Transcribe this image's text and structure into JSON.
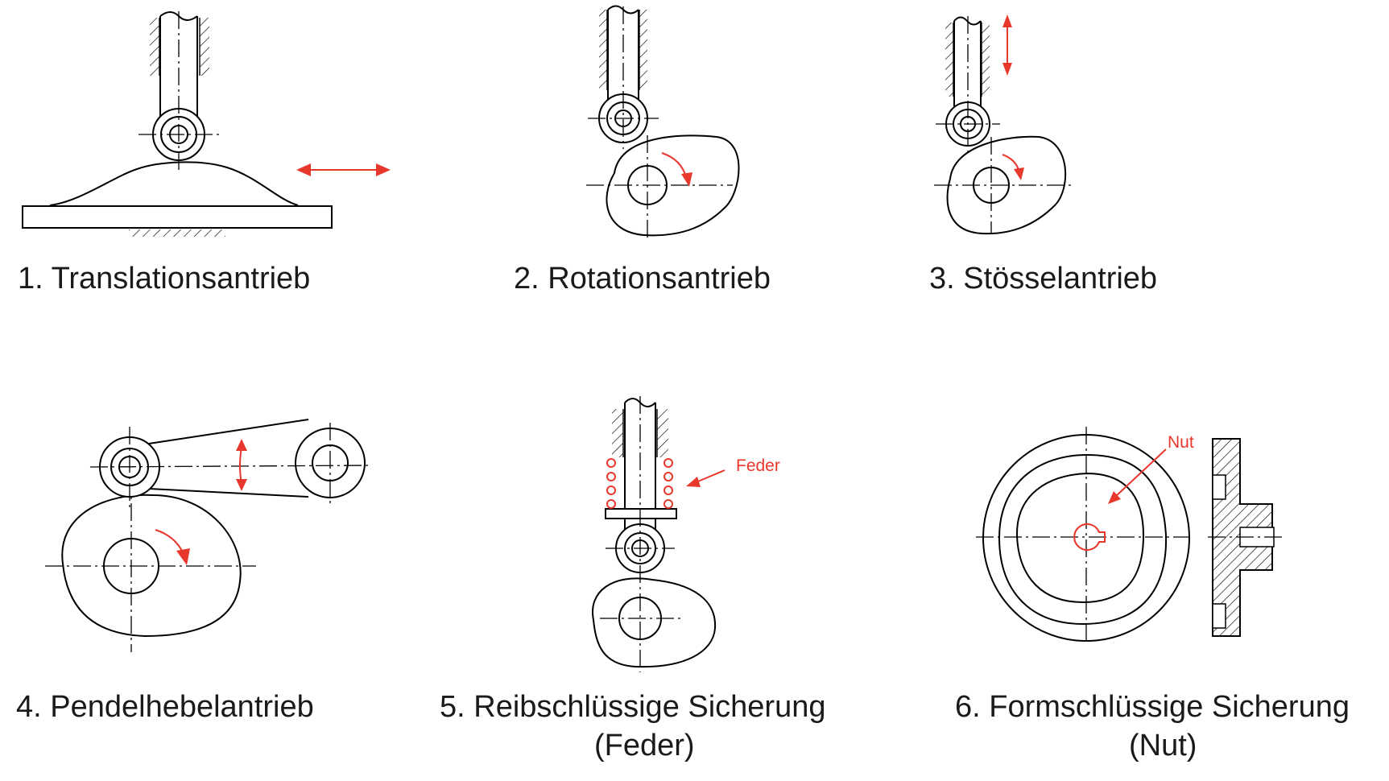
{
  "labels": {
    "d1": "1. Translationsantrieb",
    "d2": "2. Rotationsantrieb",
    "d3": "3. Stösselantrieb",
    "d4": "4. Pendelhebelantrieb",
    "d5_line1": "5. Reibschlüssige Sicherung",
    "d5_line2": "(Feder)",
    "d6_line1": "6. Formschlüssige Sicherung",
    "d6_line2": "(Nut)"
  },
  "annotations": {
    "spring": "Feder",
    "groove": "Nut"
  },
  "colors": {
    "accent": "#e8372c",
    "line": "#000000",
    "text": "#1a1a1a"
  }
}
